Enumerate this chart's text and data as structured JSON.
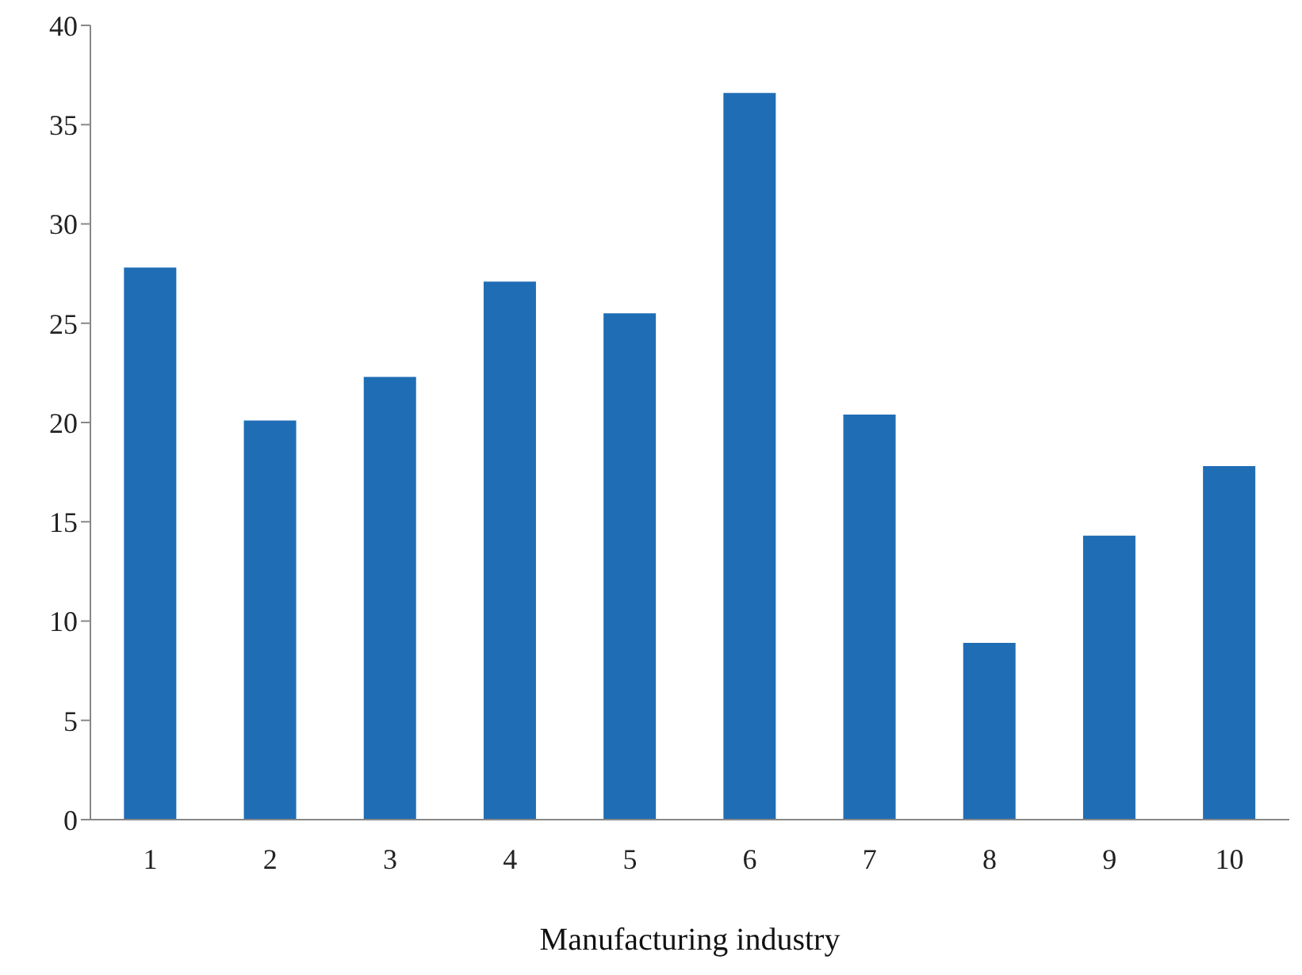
{
  "chart_data": {
    "type": "bar",
    "xlabel": "Manufacturing industry",
    "categories": [
      "1",
      "2",
      "3",
      "4",
      "5",
      "6",
      "7",
      "8",
      "9",
      "10"
    ],
    "values": [
      27.8,
      20.1,
      22.3,
      27.1,
      25.5,
      36.6,
      20.4,
      8.9,
      14.3,
      17.8
    ],
    "color": "#1f6db5",
    "ylim": [
      0,
      40
    ],
    "yticks": [
      0,
      5,
      10,
      15,
      20,
      25,
      30,
      35,
      40
    ],
    "grid": false
  }
}
